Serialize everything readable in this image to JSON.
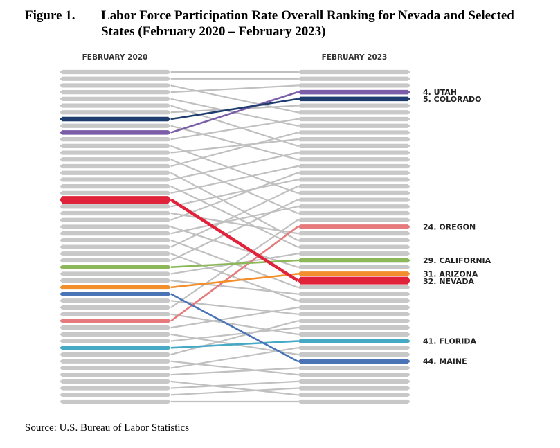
{
  "figure": {
    "label": "Figure 1.",
    "title": "Labor Force Participation Rate Overall Ranking for Nevada and Selected States (February 2020 – February 2023)"
  },
  "source": "Source: U.S. Bureau of Labor Statistics",
  "chart_data": {
    "type": "slope",
    "columns": [
      "FEBRUARY 2020",
      "FEBRUARY 2023"
    ],
    "rank_range": [
      1,
      50
    ],
    "highlighted": [
      {
        "name": "UTAH",
        "label": "4. UTAH",
        "rank_2020": 10,
        "rank_2023": 4,
        "color": "#7b5ea7"
      },
      {
        "name": "COLORADO",
        "label": "5. COLORADO",
        "rank_2020": 8,
        "rank_2023": 5,
        "color": "#1f3d6e"
      },
      {
        "name": "OREGON",
        "label": "24. OREGON",
        "rank_2020": 38,
        "rank_2023": 24,
        "color": "#e77a7c"
      },
      {
        "name": "CALIFORNIA",
        "label": "29. CALIFORNIA",
        "rank_2020": 30,
        "rank_2023": 29,
        "color": "#8cb85a"
      },
      {
        "name": "ARIZONA",
        "label": "31. ARIZONA",
        "rank_2020": 33,
        "rank_2023": 31,
        "color": "#f28e2b"
      },
      {
        "name": "NEVADA",
        "label": "32. NEVADA",
        "rank_2020": 20,
        "rank_2023": 32,
        "color": "#e0223a",
        "emphasis": true
      },
      {
        "name": "FLORIDA",
        "label": "41. FLORIDA",
        "rank_2020": 42,
        "rank_2023": 41,
        "color": "#45a9c6"
      },
      {
        "name": "MAINE",
        "label": "44. MAINE",
        "rank_2020": 34,
        "rank_2023": 44,
        "color": "#4b74b7"
      }
    ],
    "background_links": [
      [
        1,
        1
      ],
      [
        2,
        2
      ],
      [
        3,
        7
      ],
      [
        4,
        3
      ],
      [
        5,
        9
      ],
      [
        6,
        12
      ],
      [
        7,
        6
      ],
      [
        9,
        14
      ],
      [
        11,
        8
      ],
      [
        12,
        19
      ],
      [
        13,
        11
      ],
      [
        14,
        22
      ],
      [
        15,
        10
      ],
      [
        16,
        26
      ],
      [
        17,
        13
      ],
      [
        18,
        27
      ],
      [
        19,
        15
      ],
      [
        21,
        17
      ],
      [
        22,
        25
      ],
      [
        23,
        16
      ],
      [
        24,
        30
      ],
      [
        25,
        21
      ],
      [
        26,
        33
      ],
      [
        27,
        18
      ],
      [
        28,
        35
      ],
      [
        29,
        20
      ],
      [
        31,
        28
      ],
      [
        32,
        34
      ],
      [
        35,
        37
      ],
      [
        36,
        23
      ],
      [
        37,
        40
      ],
      [
        39,
        36
      ],
      [
        40,
        43
      ],
      [
        41,
        39
      ],
      [
        43,
        38
      ],
      [
        44,
        46
      ],
      [
        45,
        42
      ],
      [
        46,
        45
      ],
      [
        47,
        49
      ],
      [
        48,
        47
      ],
      [
        49,
        48
      ],
      [
        50,
        50
      ]
    ],
    "colors": {
      "bar": "#c8c8c8",
      "link": "#c0c0c0"
    }
  }
}
